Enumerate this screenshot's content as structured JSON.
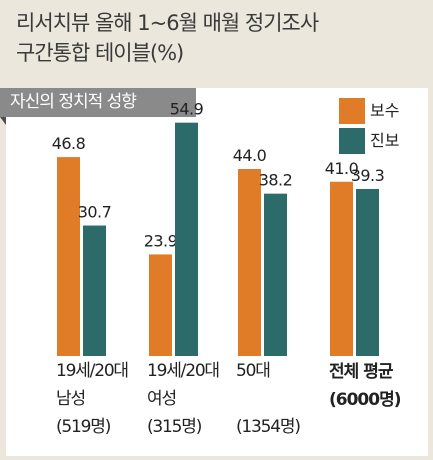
{
  "header": {
    "title_line1": "리서치뷰 올해 1~6월 매월 정기조사",
    "title_line2": "구간통합 테이블(%)"
  },
  "chart_data": {
    "type": "bar",
    "title": "자신의 정치적 성향",
    "categories": [
      {
        "lines": [
          "19세/20대",
          "남성",
          "(519명)"
        ],
        "bold": false
      },
      {
        "lines": [
          "19세/20대",
          "여성",
          "(315명)"
        ],
        "bold": false
      },
      {
        "lines": [
          "50대",
          "",
          "(1354명)"
        ],
        "bold": false
      },
      {
        "lines": [
          "전체 평균",
          "(6000명)"
        ],
        "bold": true
      }
    ],
    "series": [
      {
        "name": "보수",
        "color": "#e07b27",
        "values": [
          46.8,
          23.9,
          44.0,
          41.0
        ]
      },
      {
        "name": "진보",
        "color": "#2c6b6a",
        "values": [
          30.7,
          54.9,
          38.2,
          39.3
        ]
      }
    ],
    "value_labels": [
      [
        "46.8",
        "23.9",
        "44.0",
        "41.0"
      ],
      [
        "30.7",
        "54.9",
        "38.2",
        "39.3"
      ]
    ],
    "ylim": [
      0,
      60
    ],
    "grid": false,
    "legend_position": "top-right"
  }
}
